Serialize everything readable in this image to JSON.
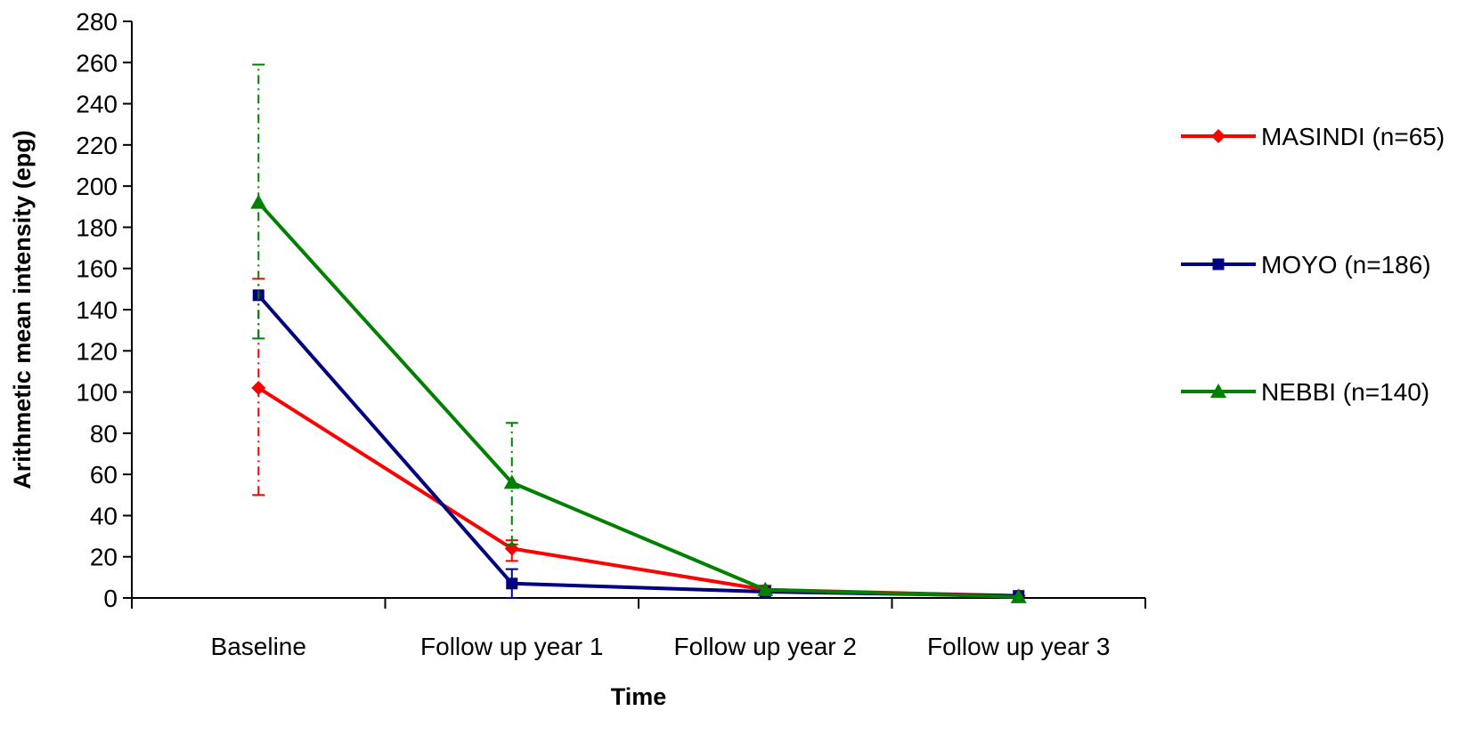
{
  "chart_data": {
    "type": "line",
    "title": "",
    "xlabel": "Time",
    "ylabel": "Arithmetic mean intensity (epg)",
    "ylim": [
      0,
      280
    ],
    "yticks": [
      0,
      20,
      40,
      60,
      80,
      100,
      120,
      140,
      160,
      180,
      200,
      220,
      240,
      260,
      280
    ],
    "categories": [
      "Baseline",
      "Follow up year 1",
      "Follow up year 2",
      "Follow up year 3"
    ],
    "grid": false,
    "legend_position": "right",
    "series": [
      {
        "name": "MASINDI (n=65)",
        "color": "#ff0000",
        "marker": "diamond",
        "values": [
          102,
          24,
          4,
          1
        ],
        "error_low": [
          50,
          18,
          2,
          null
        ],
        "error_high": [
          155,
          28,
          6,
          null
        ],
        "error_style": "dash-dot"
      },
      {
        "name": "MOYO (n=186)",
        "color": "#000080",
        "marker": "square",
        "values": [
          147,
          7,
          3,
          1
        ],
        "error_low": [
          null,
          0,
          null,
          null
        ],
        "error_high": [
          null,
          14,
          null,
          null
        ],
        "error_style": "solid"
      },
      {
        "name": "NEBBI (n=140)",
        "color": "#008000",
        "marker": "triangle",
        "values": [
          192,
          56,
          4,
          0.5
        ],
        "error_low": [
          126,
          26,
          null,
          null
        ],
        "error_high": [
          259,
          85,
          null,
          null
        ],
        "error_style": "dash-dot"
      }
    ]
  }
}
